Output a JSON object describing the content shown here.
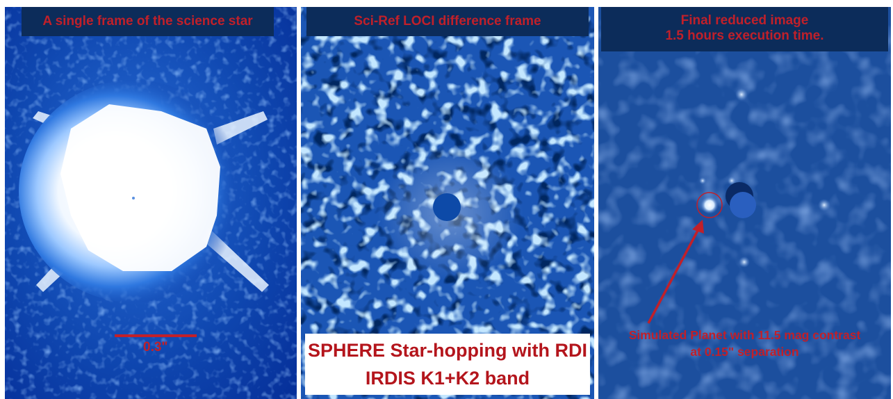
{
  "panels": {
    "single_frame": {
      "title": "A single frame of the science star",
      "scale_label": "0.3\""
    },
    "difference": {
      "title": "Sci-Ref LOCI difference frame",
      "info_line1": "SPHERE Star-hopping with RDI",
      "info_line2": "IRDIS K1+K2 band"
    },
    "final": {
      "title_line1": "Final reduced image",
      "title_line2": "1.5 hours execution time.",
      "annotation_line1": "Simulated Planet with 11.5 mag contrast",
      "annotation_line2": "at 0.15\" separation"
    }
  },
  "colors": {
    "banner_bg": "#0c2c5a",
    "label_red": "#c0202a",
    "panel_blue": "#1b56b5",
    "final_blue": "#1c4f9e",
    "divider": "#ffffff"
  }
}
